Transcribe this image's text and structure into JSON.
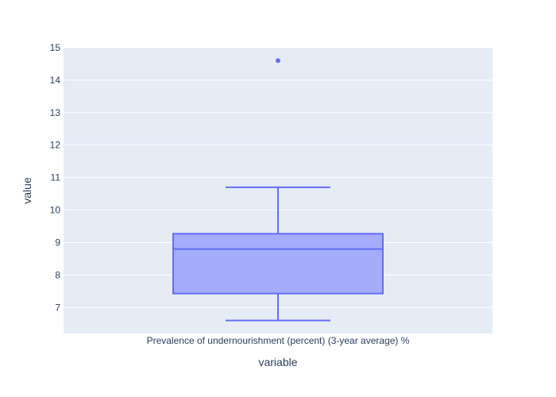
{
  "chart_data": {
    "type": "box",
    "categories": [
      "Prevalence of undernourishment (percent) (3-year average) %"
    ],
    "xlabel": "variable",
    "ylabel": "value",
    "ylim": [
      6.2,
      15.0
    ],
    "yticks": [
      7,
      8,
      9,
      10,
      11,
      12,
      13,
      14,
      15
    ],
    "grid": true,
    "series": [
      {
        "lower_whisker": 6.6,
        "q1": 7.43,
        "median": 8.8,
        "q3": 9.27,
        "upper_whisker": 10.7,
        "outliers": [
          14.6
        ]
      }
    ],
    "colors": {
      "plot_bg": "#e5ecf6",
      "grid": "#ffffff",
      "box_line": "#636efa",
      "box_fill": "#a4acfb",
      "text": "#2a3f5f"
    }
  }
}
